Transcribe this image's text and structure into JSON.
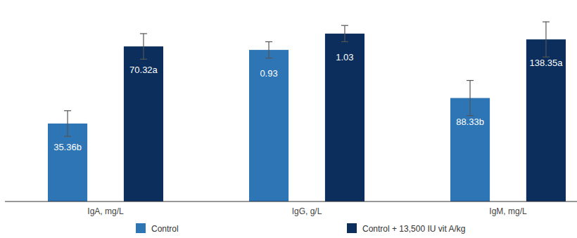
{
  "chart_data": [
    {
      "type": "bar",
      "categories": [
        "IgA, mg/L"
      ],
      "ylim": [
        0,
        85
      ],
      "data_labels": true,
      "tick_labels": "x",
      "legend": "bottom",
      "series": [
        {
          "name": "Control",
          "color": "#2e75b6",
          "values": [
            35.36
          ],
          "value_labels": [
            "35.36b"
          ],
          "errors": [
            5.8
          ]
        },
        {
          "name": "Control + 13,500 IU vit A/kg",
          "color": "#0b2e5c",
          "values": [
            70.32
          ],
          "value_labels": [
            "70.32a"
          ],
          "errors": [
            5.8
          ]
        }
      ]
    },
    {
      "type": "bar",
      "categories": [
        "IgG, g/L"
      ],
      "ylim": [
        0,
        1.15
      ],
      "data_labels": true,
      "tick_labels": "x",
      "series": [
        {
          "color": "#2e75b6",
          "values": [
            0.93
          ],
          "value_labels": [
            "0.93"
          ],
          "errors": [
            0.05
          ]
        },
        {
          "color": "#0b2e5c",
          "values": [
            1.03
          ],
          "value_labels": [
            "1.03"
          ],
          "errors": [
            0.05
          ]
        }
      ]
    },
    {
      "type": "bar",
      "categories": [
        "IgM, mg/L"
      ],
      "ylim": [
        0,
        160
      ],
      "data_labels": true,
      "tick_labels": "x",
      "series": [
        {
          "color": "#2e75b6",
          "values": [
            88.33
          ],
          "value_labels": [
            "88.33b"
          ],
          "errors": [
            15
          ]
        },
        {
          "color": "#0b2e5c",
          "values": [
            138.35
          ],
          "value_labels": [
            "138.35a"
          ],
          "errors": [
            15
          ]
        }
      ]
    }
  ]
}
